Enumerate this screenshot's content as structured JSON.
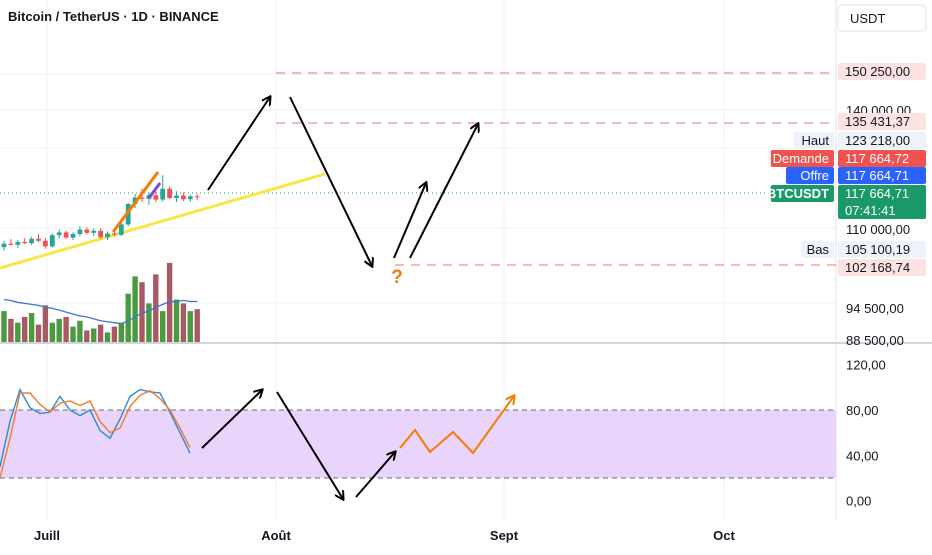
{
  "header": {
    "title": "Bitcoin / TetherUS · 1D · BINANCE",
    "currency_button": "USDT"
  },
  "colors": {
    "up": "#26a69a",
    "down": "#ef5350",
    "vol_up": "#4a9a3f",
    "vol_down": "#a85a64",
    "ma": "#3b73d6",
    "trend": "#f7e64a",
    "orange": "#f57c00",
    "stoch_k": "#2b8ad6",
    "stoch_d": "#f07c2a",
    "band_fill": "#e9d4fb",
    "dash_red": "#f08e8e",
    "last_price": "#1b9a69"
  },
  "chart_data": [
    {
      "type": "candlestick",
      "title": "Bitcoin / TetherUS · 1D · BINANCE",
      "price_scale": {
        "ticks": [
          "140 000,00",
          "110 000,00",
          "94 500,00",
          "88 500,00"
        ],
        "labels": [
          {
            "name": "target-high",
            "value": 150250.0,
            "text": "150 250,00",
            "style": "red-outline"
          },
          {
            "name": "target-mid",
            "value": 135431.37,
            "text": "135 431,37",
            "style": "red-outline"
          },
          {
            "name": "high",
            "caption": "Haut",
            "value": 123218.0,
            "text": "123 218,00",
            "style": "light"
          },
          {
            "name": "ask",
            "caption": "Demande",
            "value": 117664.72,
            "text": "117 664,72",
            "style": "red"
          },
          {
            "name": "bid",
            "caption": "Offre",
            "value": 117664.71,
            "text": "117 664,71",
            "style": "blue"
          },
          {
            "name": "last",
            "caption": "BTCUSDT",
            "value": 117664.71,
            "text": "117 664,71",
            "countdown": "07:41:41",
            "style": "green"
          },
          {
            "name": "low",
            "caption": "Bas",
            "value": 105100.19,
            "text": "105 100,19",
            "style": "light"
          },
          {
            "name": "support",
            "value": 102168.74,
            "text": "102 168,74",
            "style": "red-outline"
          }
        ]
      },
      "horizontal_levels": [
        150250.0,
        135431.37,
        102168.74
      ],
      "candles": [
        {
          "o": 105200,
          "h": 106800,
          "l": 104300,
          "c": 106100
        },
        {
          "o": 106100,
          "h": 107200,
          "l": 105600,
          "c": 105800
        },
        {
          "o": 105800,
          "h": 107000,
          "l": 105000,
          "c": 106500
        },
        {
          "o": 106500,
          "h": 107500,
          "l": 105900,
          "c": 106200
        },
        {
          "o": 106200,
          "h": 107800,
          "l": 105800,
          "c": 107300
        },
        {
          "o": 107300,
          "h": 108400,
          "l": 106400,
          "c": 106800
        },
        {
          "o": 106800,
          "h": 107600,
          "l": 104800,
          "c": 105400
        },
        {
          "o": 105400,
          "h": 108600,
          "l": 105100,
          "c": 108200
        },
        {
          "o": 108200,
          "h": 109600,
          "l": 107400,
          "c": 108900
        },
        {
          "o": 108900,
          "h": 109400,
          "l": 107200,
          "c": 107600
        },
        {
          "o": 107600,
          "h": 108900,
          "l": 107000,
          "c": 108500
        },
        {
          "o": 108500,
          "h": 110500,
          "l": 107900,
          "c": 109600
        },
        {
          "o": 109600,
          "h": 110200,
          "l": 108400,
          "c": 108800
        },
        {
          "o": 108800,
          "h": 109900,
          "l": 108000,
          "c": 109300
        },
        {
          "o": 109300,
          "h": 110000,
          "l": 107200,
          "c": 107700
        },
        {
          "o": 107700,
          "h": 109200,
          "l": 107000,
          "c": 108600
        },
        {
          "o": 108600,
          "h": 109400,
          "l": 107900,
          "c": 108300
        },
        {
          "o": 108300,
          "h": 111400,
          "l": 108000,
          "c": 110900
        },
        {
          "o": 110900,
          "h": 116300,
          "l": 110400,
          "c": 116000
        },
        {
          "o": 116000,
          "h": 118500,
          "l": 115000,
          "c": 117600
        },
        {
          "o": 117600,
          "h": 119800,
          "l": 116500,
          "c": 117300
        },
        {
          "o": 117300,
          "h": 118900,
          "l": 115800,
          "c": 118200
        },
        {
          "o": 118200,
          "h": 120000,
          "l": 116400,
          "c": 117100
        },
        {
          "o": 117100,
          "h": 123218,
          "l": 116600,
          "c": 119800
        },
        {
          "o": 119800,
          "h": 120400,
          "l": 117200,
          "c": 117500
        },
        {
          "o": 117500,
          "h": 119200,
          "l": 116500,
          "c": 118100
        },
        {
          "o": 118100,
          "h": 118900,
          "l": 116700,
          "c": 117200
        },
        {
          "o": 117200,
          "h": 118300,
          "l": 116500,
          "c": 117900
        },
        {
          "o": 117900,
          "h": 118500,
          "l": 116900,
          "c": 117664.71
        }
      ],
      "volume": {
        "values": [
          16,
          12,
          10,
          13,
          15,
          9,
          19,
          10,
          12,
          13,
          8,
          11,
          6,
          7,
          9,
          5,
          8,
          10,
          25,
          34,
          31,
          20,
          35,
          16,
          41,
          22,
          20,
          16,
          17
        ],
        "ma": [
          22,
          21.5,
          20.5,
          20,
          19.5,
          19,
          18,
          17.5,
          16.5,
          15.5,
          14.5,
          13.5,
          13,
          12,
          11,
          10.5,
          10,
          9.5,
          11,
          13,
          15,
          16,
          18,
          19.5,
          21,
          21,
          21.5,
          21,
          21
        ]
      }
    },
    {
      "type": "line",
      "indicator": "stochastic-rsi",
      "y_ticks": [
        "120,00",
        "80,00",
        "40,00",
        "0,00"
      ],
      "band": [
        20,
        80
      ],
      "ylim": [
        -5,
        125
      ],
      "series": [
        {
          "role": "k",
          "values": [
            30,
            70,
            98,
            82,
            77,
            78,
            92,
            80,
            75,
            80,
            62,
            55,
            72,
            92,
            98,
            96,
            95,
            78,
            60,
            42
          ]
        },
        {
          "role": "d",
          "values": [
            20,
            55,
            95,
            95,
            85,
            78,
            86,
            88,
            84,
            88,
            70,
            60,
            64,
            83,
            93,
            97,
            90,
            80,
            64,
            47
          ]
        }
      ]
    }
  ],
  "x_axis": {
    "labels": [
      "Juill",
      "Août",
      "Sept",
      "Oct"
    ]
  },
  "annotations": {
    "question_mark": "?"
  }
}
